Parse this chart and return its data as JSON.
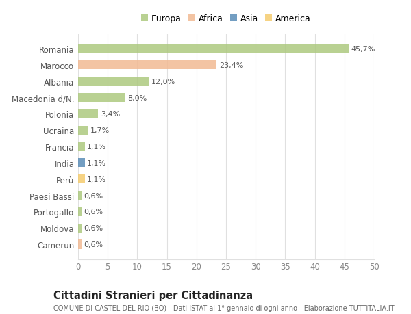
{
  "categories": [
    "Romania",
    "Marocco",
    "Albania",
    "Macedonia d/N.",
    "Polonia",
    "Ucraina",
    "Francia",
    "India",
    "Perù",
    "Paesi Bassi",
    "Portogallo",
    "Moldova",
    "Camerun"
  ],
  "values": [
    45.7,
    23.4,
    12.0,
    8.0,
    3.4,
    1.7,
    1.1,
    1.1,
    1.1,
    0.6,
    0.6,
    0.6,
    0.6
  ],
  "labels": [
    "45,7%",
    "23,4%",
    "12,0%",
    "8,0%",
    "3,4%",
    "1,7%",
    "1,1%",
    "1,1%",
    "1,1%",
    "0,6%",
    "0,6%",
    "0,6%",
    "0,6%"
  ],
  "continents": [
    "Europa",
    "Africa",
    "Europa",
    "Europa",
    "Europa",
    "Europa",
    "Europa",
    "Asia",
    "America",
    "Europa",
    "Europa",
    "Europa",
    "Africa"
  ],
  "colors": {
    "Europa": "#adc97f",
    "Africa": "#f2ba93",
    "Asia": "#5b8db8",
    "America": "#f5cc6e"
  },
  "xlim": [
    0,
    50
  ],
  "xticks": [
    0,
    5,
    10,
    15,
    20,
    25,
    30,
    35,
    40,
    45,
    50
  ],
  "title": "Cittadini Stranieri per Cittadinanza",
  "subtitle": "COMUNE DI CASTEL DEL RIO (BO) - Dati ISTAT al 1° gennaio di ogni anno - Elaborazione TUTTITALIA.IT",
  "background_color": "#ffffff",
  "grid_color": "#e0e0e0",
  "bar_height": 0.55,
  "legend_order": [
    "Europa",
    "Africa",
    "Asia",
    "America"
  ]
}
